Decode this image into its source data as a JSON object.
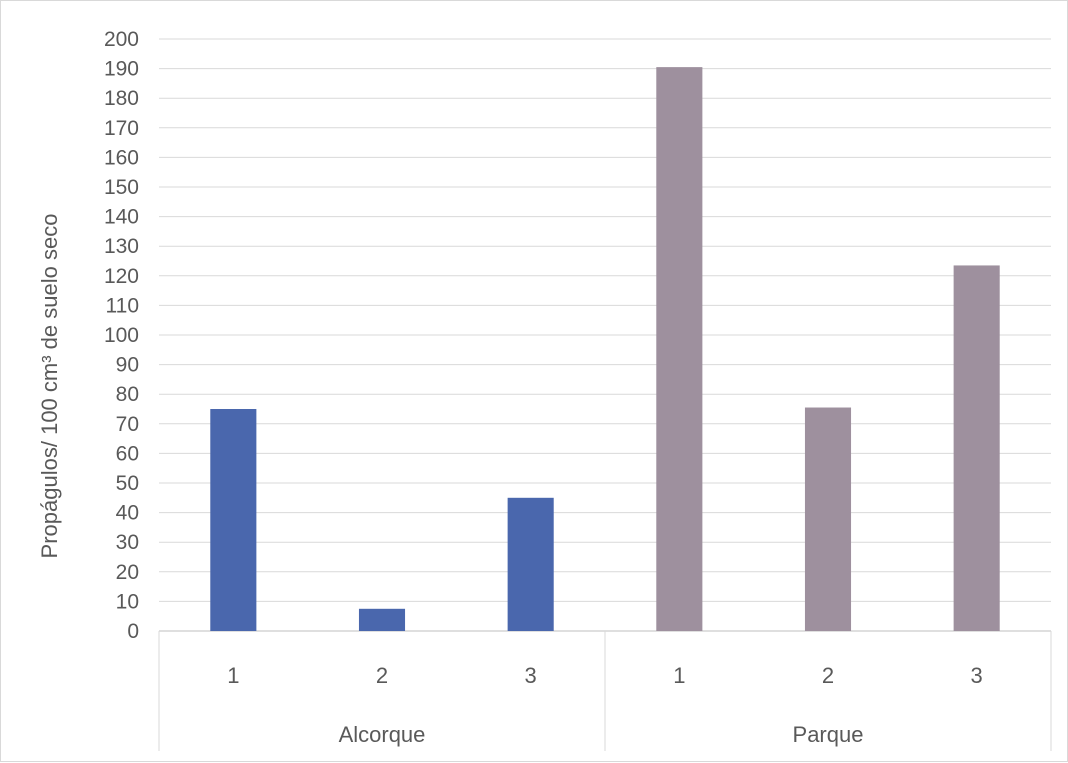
{
  "chart_data": {
    "type": "bar",
    "ylabel": "Propágulos/ 100 cm³ de suelo seco",
    "ylim": [
      0,
      200
    ],
    "ytick_step": 10,
    "grid": true,
    "groups": [
      {
        "label": "Alcorque",
        "categories": [
          "1",
          "2",
          "3"
        ],
        "values": [
          75,
          7.5,
          45
        ],
        "color": "#4a67ad"
      },
      {
        "label": "Parque",
        "categories": [
          "1",
          "2",
          "3"
        ],
        "values": [
          190.5,
          75.5,
          123.5
        ],
        "color": "#9e909e"
      }
    ]
  }
}
